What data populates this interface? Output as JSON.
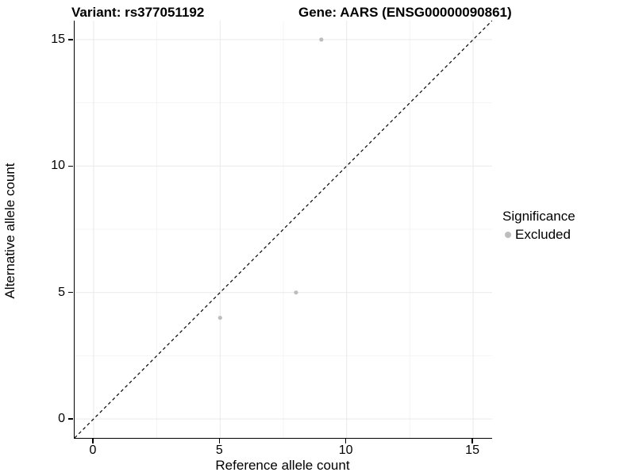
{
  "titles": {
    "left": "Variant: rs377051192",
    "right": "Gene: AARS (ENSG00000090861)"
  },
  "chart_data": {
    "type": "scatter",
    "title": "Variant: rs377051192   Gene: AARS (ENSG00000090861)",
    "xlabel": "Reference allele count",
    "ylabel": "Alternative allele count",
    "xlim": [
      -0.75,
      15.75
    ],
    "ylim": [
      -0.75,
      15.75
    ],
    "x_ticks": [
      0,
      5,
      10,
      15
    ],
    "y_ticks": [
      0,
      5,
      10,
      15
    ],
    "x_minor_ticks": [
      2.5,
      7.5,
      12.5
    ],
    "y_minor_ticks": [
      2.5,
      7.5,
      12.5
    ],
    "grid": true,
    "series": [
      {
        "name": "Excluded",
        "color": "#bdbdbd",
        "points": [
          [
            5,
            4
          ],
          [
            8,
            5
          ],
          [
            9,
            15
          ]
        ]
      }
    ],
    "reference_line": {
      "slope": 1,
      "intercept": 0,
      "style": "dashed",
      "color": "#000000"
    },
    "legend": {
      "title": "Significance",
      "position": "right",
      "entries": [
        {
          "label": "Excluded",
          "color": "#bdbdbd"
        }
      ]
    },
    "colors": {
      "grid_major": "#e9e9e9",
      "grid_minor": "#f4f4f4",
      "axis_line": "#000000",
      "point": "#bdbdbd"
    }
  }
}
